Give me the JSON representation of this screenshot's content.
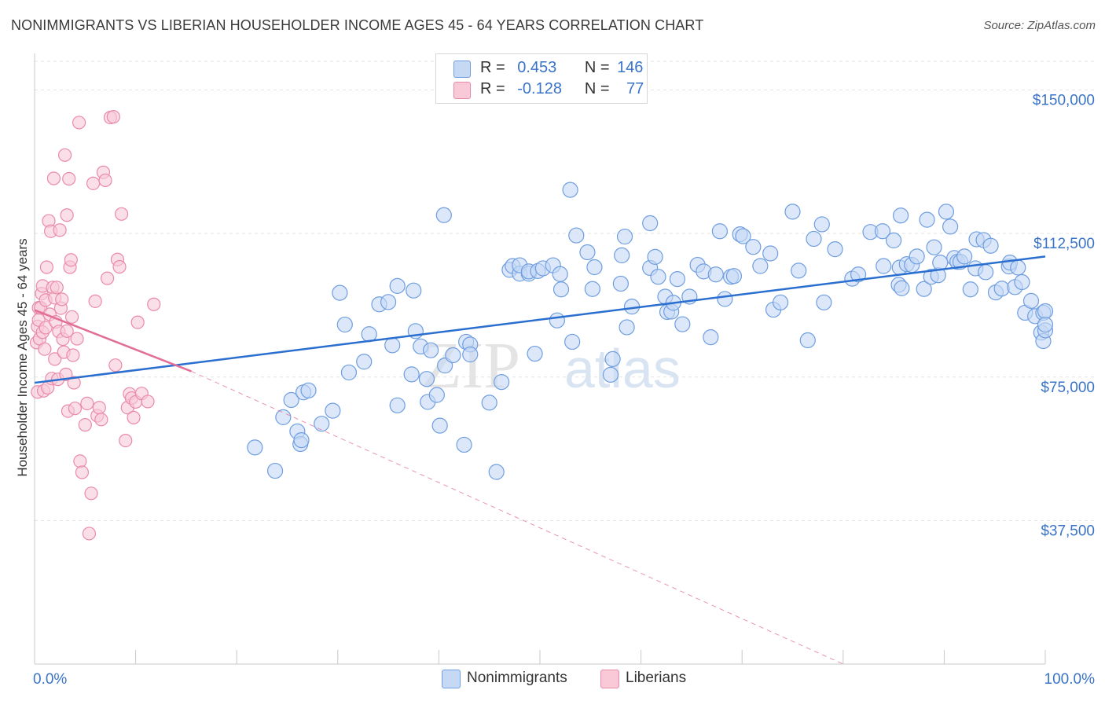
{
  "title": "NONIMMIGRANTS VS LIBERIAN HOUSEHOLDER INCOME AGES 45 - 64 YEARS CORRELATION CHART",
  "source": "Source: ZipAtlas.com",
  "watermark": {
    "zip": "ZIP",
    "atlas": "atlas"
  },
  "legend": {
    "r_label": "R =",
    "n_label": "N =",
    "rows": [
      {
        "r": "0.453",
        "n": "146",
        "fill": "#c5d9f5",
        "stroke": "#6f9ee0"
      },
      {
        "r": "-0.128",
        "n": "77",
        "fill": "#f9c9d8",
        "stroke": "#ea8aa9"
      }
    ]
  },
  "chart_data": {
    "type": "scatter",
    "title": "NONIMMIGRANTS VS LIBERIAN HOUSEHOLDER INCOME AGES 45 - 64 YEARS CORRELATION CHART",
    "xlabel": "",
    "ylabel": "Householder Income Ages 45 - 64 years",
    "xlim": [
      0,
      100
    ],
    "ylim": [
      0,
      157500
    ],
    "x_tick_labels": [
      "0.0%",
      "100.0%"
    ],
    "y_ticks": [
      37500,
      75000,
      112500,
      150000
    ],
    "y_tick_labels": [
      "$37,500",
      "$75,000",
      "$112,500",
      "$150,000"
    ],
    "grid": true,
    "legend_position": "top-center",
    "series": [
      {
        "name": "Nonimmigrants",
        "color": "#6f9ee0",
        "fill": "#c5d9f5",
        "trend": {
          "x0": 0,
          "y0": 73500,
          "x1": 100,
          "y1": 106500,
          "color": "#2a6fd0"
        },
        "x": [
          21.8,
          23.8,
          24.6,
          25.4,
          26.0,
          26.3,
          26.4,
          26.6,
          27.1,
          28.4,
          29.5,
          30.2,
          30.7,
          31.1,
          32.6,
          33.1,
          34.1,
          35.0,
          35.4,
          35.9,
          35.9,
          37.3,
          37.5,
          37.7,
          38.2,
          38.8,
          38.9,
          39.2,
          39.8,
          40.1,
          40.5,
          40.6,
          41.4,
          42.5,
          42.7,
          43.1,
          43.1,
          45.0,
          45.7,
          46.2,
          47.0,
          47.3,
          48.0,
          48.0,
          48.9,
          48.9,
          49.5,
          49.8,
          50.3,
          51.3,
          51.7,
          52.0,
          52.1,
          53.0,
          53.2,
          53.6,
          54.7,
          55.2,
          55.4,
          57.0,
          57.2,
          58.0,
          58.1,
          58.4,
          58.6,
          59.1,
          60.9,
          60.9,
          61.4,
          61.7,
          62.4,
          62.6,
          63.0,
          63.2,
          63.6,
          64.1,
          64.8,
          65.6,
          66.2,
          66.9,
          67.4,
          67.8,
          68.3,
          68.9,
          69.2,
          69.8,
          70.1,
          71.1,
          71.8,
          72.8,
          73.1,
          73.8,
          75.0,
          75.6,
          76.5,
          77.1,
          77.9,
          78.1,
          79.2,
          80.9,
          81.5,
          82.7,
          83.9,
          84.0,
          85.0,
          85.5,
          85.6,
          85.7,
          85.8,
          86.3,
          86.8,
          87.3,
          88.0,
          88.3,
          88.7,
          89.0,
          89.4,
          89.6,
          90.2,
          90.6,
          91.0,
          91.3,
          91.6,
          92.0,
          92.6,
          93.1,
          93.2,
          93.9,
          94.1,
          94.6,
          95.1,
          95.7,
          96.4,
          96.5,
          97.0,
          97.3,
          97.7,
          98.0,
          98.6,
          99.0,
          99.6,
          99.8,
          99.8,
          100.0,
          100.0,
          100.0
        ],
        "y": [
          56600,
          50500,
          64500,
          69000,
          60800,
          57500,
          58500,
          71000,
          71500,
          62800,
          66200,
          97000,
          88700,
          76200,
          79000,
          86200,
          94000,
          94600,
          83300,
          67600,
          98800,
          75700,
          97600,
          87000,
          83000,
          74500,
          68500,
          82000,
          70300,
          62300,
          117300,
          78000,
          80700,
          57300,
          84200,
          83500,
          80900,
          68300,
          50200,
          73700,
          103000,
          104000,
          102000,
          104200,
          102000,
          102600,
          81100,
          102700,
          103400,
          104200,
          89800,
          101900,
          97900,
          123900,
          84200,
          112000,
          107600,
          98000,
          103700,
          75600,
          79700,
          99400,
          106800,
          111700,
          88000,
          93400,
          103500,
          115200,
          106400,
          101200,
          96000,
          92000,
          92100,
          94400,
          100600,
          88800,
          96000,
          104300,
          102600,
          85400,
          101800,
          113100,
          95400,
          101200,
          101400,
          112300,
          111800,
          109000,
          104000,
          107300,
          92600,
          94500,
          118200,
          102800,
          84600,
          111100,
          114900,
          94500,
          108400,
          100700,
          101800,
          112900,
          113100,
          104000,
          110700,
          99100,
          103600,
          117200,
          98200,
          104500,
          104300,
          106500,
          98000,
          116100,
          101200,
          108900,
          101600,
          104900,
          118200,
          114300,
          106100,
          105100,
          105100,
          106500,
          97900,
          103400,
          111000,
          110800,
          102400,
          109300,
          97100,
          98100,
          103900,
          104900,
          98500,
          103600,
          99800,
          91800,
          94900,
          90900,
          86600,
          84400,
          91800,
          92200,
          87200,
          88700
        ]
      },
      {
        "name": "Liberians",
        "color": "#ea8aa9",
        "fill": "#f9c9d8",
        "trend": {
          "x0": 0,
          "y0": 92500,
          "x1": 15.5,
          "y1": 76500,
          "color": "#e26f97",
          "dashed_extension": {
            "x1": 80,
            "y1": 0
          }
        },
        "x": [
          0.2,
          0.3,
          0.3,
          0.4,
          0.4,
          0.5,
          0.6,
          0.7,
          0.8,
          0.8,
          0.9,
          1.0,
          1.1,
          1.1,
          1.2,
          1.3,
          1.4,
          1.5,
          1.6,
          1.7,
          1.8,
          1.9,
          2.0,
          2.0,
          2.1,
          2.2,
          2.3,
          2.4,
          2.5,
          2.6,
          2.7,
          2.8,
          2.9,
          3.0,
          3.1,
          3.2,
          3.2,
          3.3,
          3.4,
          3.5,
          3.6,
          3.7,
          3.8,
          3.9,
          4.0,
          4.2,
          4.4,
          4.5,
          4.7,
          5.0,
          5.2,
          5.4,
          5.6,
          5.8,
          6.0,
          6.2,
          6.4,
          6.6,
          6.8,
          7.0,
          7.2,
          7.5,
          7.8,
          8.0,
          8.2,
          8.4,
          8.6,
          9.0,
          9.2,
          9.4,
          9.6,
          9.8,
          10.0,
          10.2,
          10.6,
          11.2,
          11.8
        ],
        "y": [
          84000,
          71100,
          88200,
          89900,
          93100,
          85000,
          93100,
          96800,
          98800,
          86700,
          71400,
          82300,
          95100,
          87900,
          103700,
          72200,
          115800,
          91400,
          113100,
          74600,
          98400,
          126900,
          95700,
          79700,
          89400,
          98400,
          74400,
          86900,
          113400,
          93000,
          95300,
          84900,
          81500,
          133000,
          75700,
          87000,
          117300,
          66100,
          126800,
          103700,
          105600,
          90700,
          80700,
          73500,
          66800,
          85000,
          141500,
          53000,
          50100,
          62500,
          68100,
          34100,
          44600,
          125600,
          94800,
          64900,
          67000,
          63900,
          128500,
          126400,
          100800,
          142800,
          143000,
          78100,
          105700,
          103800,
          117600,
          58400,
          67000,
          70600,
          69500,
          64400,
          68500,
          89300,
          70700,
          68600,
          94000
        ]
      }
    ]
  }
}
